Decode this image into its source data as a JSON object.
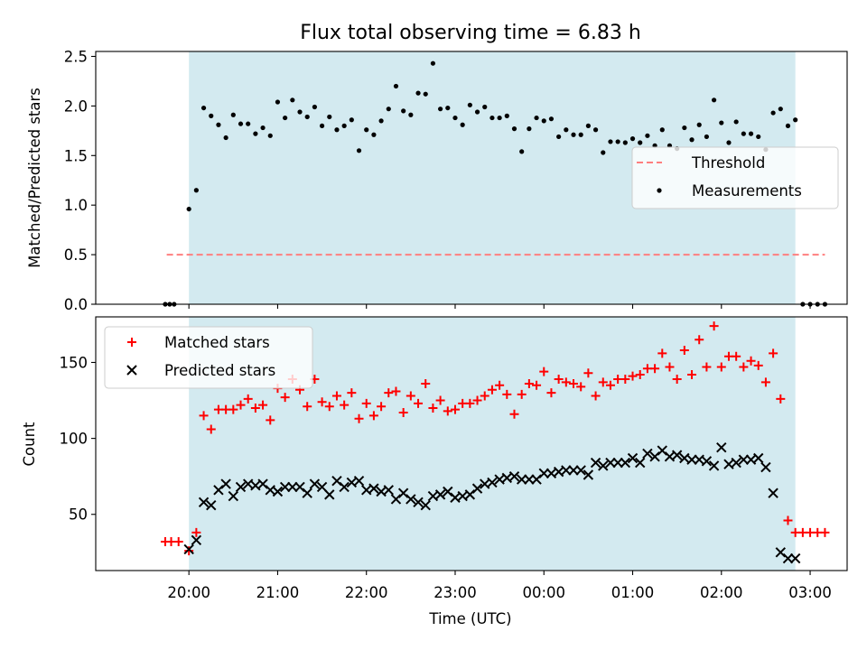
{
  "chart_data": {
    "type": "scatter",
    "title": "Flux total observing time = 6.83 h",
    "xlabel": "Time (UTC)",
    "x_ticks": [
      {
        "t": 0,
        "label": "20:00"
      },
      {
        "t": 60,
        "label": "21:00"
      },
      {
        "t": 120,
        "label": "22:00"
      },
      {
        "t": 180,
        "label": "23:00"
      },
      {
        "t": 240,
        "label": "00:00"
      },
      {
        "t": 300,
        "label": "01:00"
      },
      {
        "t": 360,
        "label": "02:00"
      },
      {
        "t": 420,
        "label": "03:00"
      }
    ],
    "shaded_span": [
      0,
      410
    ],
    "shade_color": "#d3eaf0",
    "panels": [
      {
        "id": "ratio",
        "ylabel": "Matched/Predicted stars",
        "ylim": [
          0,
          2.55
        ],
        "yticks": [
          {
            "v": 0,
            "label": "0.0"
          },
          {
            "v": 0.5,
            "label": "0.5"
          },
          {
            "v": 1,
            "label": "1.0"
          },
          {
            "v": 1.5,
            "label": "1.5"
          },
          {
            "v": 2,
            "label": "2.0"
          },
          {
            "v": 2.5,
            "label": "2.5"
          }
        ],
        "legend": [
          {
            "label": "Threshold",
            "style": "dashed-line",
            "color": "#ff7f7f"
          },
          {
            "label": "Measurements",
            "style": "dot",
            "color": "#000000"
          }
        ],
        "threshold": {
          "value": 0.5,
          "t_start": -15,
          "t_end": 430,
          "color": "#ff7f7f"
        },
        "series": [
          {
            "legend_label": "Measurements",
            "marker": "dot",
            "color": "#000000",
            "t": [
              -16,
              -13,
              -10,
              0,
              5,
              10,
              15,
              20,
              25,
              30,
              35,
              40,
              45,
              50,
              55,
              60,
              65,
              70,
              75,
              80,
              85,
              90,
              95,
              100,
              105,
              110,
              115,
              120,
              125,
              130,
              135,
              140,
              145,
              150,
              155,
              160,
              165,
              170,
              175,
              180,
              185,
              190,
              195,
              200,
              205,
              210,
              215,
              220,
              225,
              230,
              235,
              240,
              245,
              250,
              255,
              260,
              265,
              270,
              275,
              280,
              285,
              290,
              295,
              300,
              305,
              310,
              315,
              320,
              325,
              330,
              335,
              340,
              345,
              350,
              355,
              360,
              365,
              370,
              375,
              380,
              385,
              390,
              395,
              400,
              405,
              410,
              415,
              420,
              425,
              430
            ],
            "values": [
              0,
              0,
              0,
              0.96,
              1.15,
              1.98,
              1.9,
              1.81,
              1.68,
              1.91,
              1.82,
              1.82,
              1.72,
              1.78,
              1.7,
              2.04,
              1.88,
              2.06,
              1.94,
              1.89,
              1.99,
              1.8,
              1.89,
              1.76,
              1.8,
              1.86,
              1.55,
              1.76,
              1.71,
              1.85,
              1.97,
              2.2,
              1.95,
              1.91,
              2.13,
              2.12,
              2.43,
              1.97,
              1.98,
              1.88,
              1.81,
              2.01,
              1.94,
              1.99,
              1.88,
              1.88,
              1.9,
              1.77,
              1.54,
              1.77,
              1.88,
              1.85,
              1.87,
              1.69,
              1.76,
              1.71,
              1.71,
              1.8,
              1.76,
              1.53,
              1.64,
              1.64,
              1.63,
              1.67,
              1.63,
              1.7,
              1.6,
              1.76,
              1.6,
              1.57,
              1.78,
              1.66,
              1.81,
              1.69,
              2.06,
              1.83,
              1.63,
              1.84,
              1.72,
              1.72,
              1.69,
              1.56,
              1.93,
              1.97,
              1.8,
              1.86,
              0,
              0,
              0,
              0
            ]
          }
        ]
      },
      {
        "id": "count",
        "ylabel": "Count",
        "ylim": [
          13,
          180
        ],
        "yticks": [
          {
            "v": 50,
            "label": "50"
          },
          {
            "v": 100,
            "label": "100"
          },
          {
            "v": 150,
            "label": "150"
          }
        ],
        "legend": [
          {
            "label": "Matched stars",
            "style": "plus",
            "color": "#ff0000"
          },
          {
            "label": "Predicted stars",
            "style": "x",
            "color": "#000000"
          }
        ],
        "series": [
          {
            "legend_label": "Matched stars",
            "marker": "plus",
            "color": "#ff0000",
            "t": [
              -16,
              -12,
              -7,
              0,
              5,
              10,
              15,
              20,
              25,
              30,
              35,
              40,
              45,
              50,
              55,
              60,
              65,
              70,
              75,
              80,
              85,
              90,
              95,
              100,
              105,
              110,
              115,
              120,
              125,
              130,
              135,
              140,
              145,
              150,
              155,
              160,
              165,
              170,
              175,
              180,
              185,
              190,
              195,
              200,
              205,
              210,
              215,
              220,
              225,
              230,
              235,
              240,
              245,
              250,
              255,
              260,
              265,
              270,
              275,
              280,
              285,
              290,
              295,
              300,
              305,
              310,
              315,
              320,
              325,
              330,
              335,
              340,
              345,
              350,
              355,
              360,
              365,
              370,
              375,
              380,
              385,
              390,
              395,
              400,
              405,
              410,
              415,
              420,
              425,
              430
            ],
            "values": [
              32,
              32,
              32,
              26,
              38,
              115,
              106,
              119,
              119,
              119,
              122,
              126,
              120,
              122,
              112,
              133,
              127,
              139,
              132,
              121,
              139,
              124,
              121,
              128,
              122,
              130,
              113,
              123,
              115,
              121,
              130,
              131,
              117,
              128,
              123,
              136,
              120,
              125,
              118,
              119,
              123,
              123,
              125,
              128,
              132,
              135,
              129,
              116,
              129,
              136,
              135,
              144,
              130,
              139,
              137,
              136,
              134,
              143,
              128,
              137,
              135,
              139,
              139,
              141,
              142,
              146,
              146,
              156,
              147,
              139,
              158,
              142,
              165,
              147,
              174,
              147,
              154,
              154,
              147,
              151,
              148,
              137,
              156,
              126,
              46,
              38,
              38,
              38,
              38,
              38
            ]
          },
          {
            "legend_label": "Predicted stars",
            "marker": "x",
            "color": "#000000",
            "t": [
              0,
              5,
              10,
              15,
              20,
              25,
              30,
              35,
              40,
              45,
              50,
              55,
              60,
              65,
              70,
              75,
              80,
              85,
              90,
              95,
              100,
              105,
              110,
              115,
              120,
              125,
              130,
              135,
              140,
              145,
              150,
              155,
              160,
              165,
              170,
              175,
              180,
              185,
              190,
              195,
              200,
              205,
              210,
              215,
              220,
              225,
              230,
              235,
              240,
              245,
              250,
              255,
              260,
              265,
              270,
              275,
              280,
              285,
              290,
              295,
              300,
              305,
              310,
              315,
              320,
              325,
              330,
              335,
              340,
              345,
              350,
              355,
              360,
              365,
              370,
              375,
              380,
              385,
              390,
              395,
              400,
              405,
              410
            ],
            "values": [
              27,
              33,
              58,
              56,
              66,
              70,
              62,
              68,
              70,
              69,
              70,
              66,
              65,
              68,
              68,
              68,
              64,
              70,
              68,
              63,
              72,
              68,
              71,
              72,
              66,
              67,
              65,
              66,
              60,
              64,
              60,
              58,
              56,
              62,
              63,
              65,
              61,
              62,
              63,
              67,
              70,
              71,
              73,
              74,
              75,
              73,
              73,
              73,
              77,
              77,
              78,
              79,
              79,
              79,
              76,
              84,
              82,
              84,
              84,
              84,
              87,
              84,
              90,
              88,
              92,
              88,
              89,
              87,
              86,
              86,
              85,
              82,
              94,
              83,
              84,
              86,
              86,
              87,
              81,
              64,
              25,
              21,
              21
            ]
          }
        ]
      }
    ]
  }
}
